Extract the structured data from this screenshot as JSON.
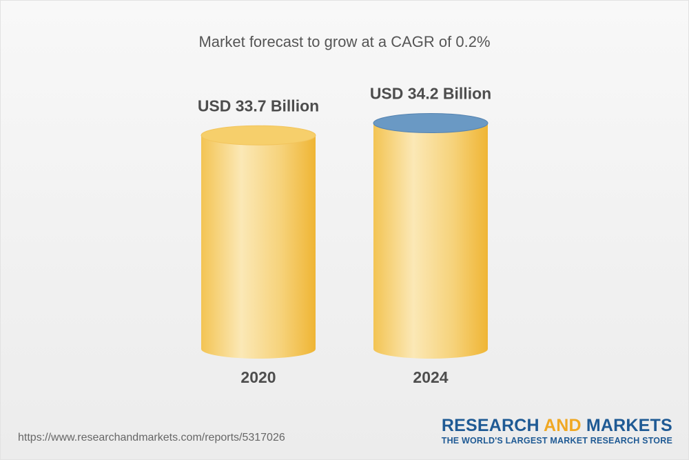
{
  "title": "Market forecast to grow at a CAGR of 0.2%",
  "chart_data": {
    "type": "bar",
    "title": "Market forecast to grow at a CAGR of 0.2%",
    "categories": [
      "2020",
      "2024"
    ],
    "values": [
      33.7,
      34.2
    ],
    "value_labels": [
      "USD 33.7 Billion",
      "USD 34.2 Billion"
    ],
    "unit": "USD Billion",
    "style": "3d-cylinder",
    "colors": {
      "body_light": "#fbe7b3",
      "body_dark": "#f0b93c",
      "top_default": "#f6cf6b",
      "top_highlight": "#6a99c4"
    },
    "grid": false
  },
  "footer": {
    "url": "https://www.researchandmarkets.com/reports/5317026",
    "logo_part1": "RESEARCH ",
    "logo_part2": "AND",
    "logo_part3": " MARKETS",
    "tagline": "THE WORLD'S LARGEST MARKET RESEARCH STORE"
  }
}
